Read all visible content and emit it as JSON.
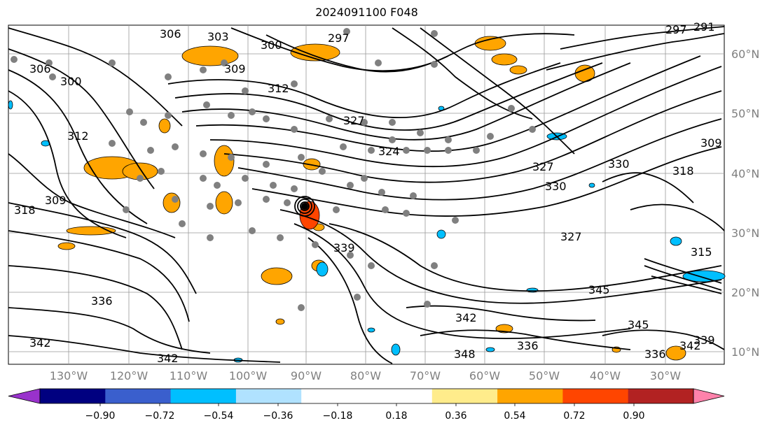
{
  "title": "2024091100 F048",
  "latitude_labels": [
    "60°N",
    "50°N",
    "40°N",
    "30°N",
    "20°N",
    "10°N"
  ],
  "longitude_labels": [
    "130°W",
    "120°W",
    "110°W",
    "100°W",
    "90°W",
    "80°W",
    "70°W",
    "60°W",
    "50°W",
    "40°W",
    "30°W"
  ],
  "contour_labels": [
    "306",
    "303",
    "300",
    "297",
    "297",
    "291",
    "309",
    "312",
    "306",
    "300",
    "312",
    "309",
    "318",
    "327",
    "324",
    "327",
    "330",
    "318",
    "309",
    "330",
    "327",
    "339",
    "336",
    "342",
    "345",
    "342",
    "342",
    "339",
    "336",
    "345",
    "336",
    "342",
    "348",
    "315"
  ],
  "colorbar": {
    "colors": [
      "#9932cc",
      "#000080",
      "#3a5fcd",
      "#00bfff",
      "#b0e2ff",
      "#ffffff",
      "#ffffff",
      "#ffec8b",
      "#ffa500",
      "#ff4500",
      "#b22222",
      "#ff82ab"
    ],
    "tick_labels": [
      "−0.90",
      "−0.72",
      "−0.54",
      "−0.36",
      "−0.18",
      "0.18",
      "0.36",
      "0.54",
      "0.72",
      "0.90"
    ]
  },
  "colors": {
    "positive_fill": "#ffa500",
    "strong_positive_fill": "#ff4500",
    "negative_fill": "#00bfff",
    "station_dots": "#808080",
    "contour_lines": "#000000"
  }
}
